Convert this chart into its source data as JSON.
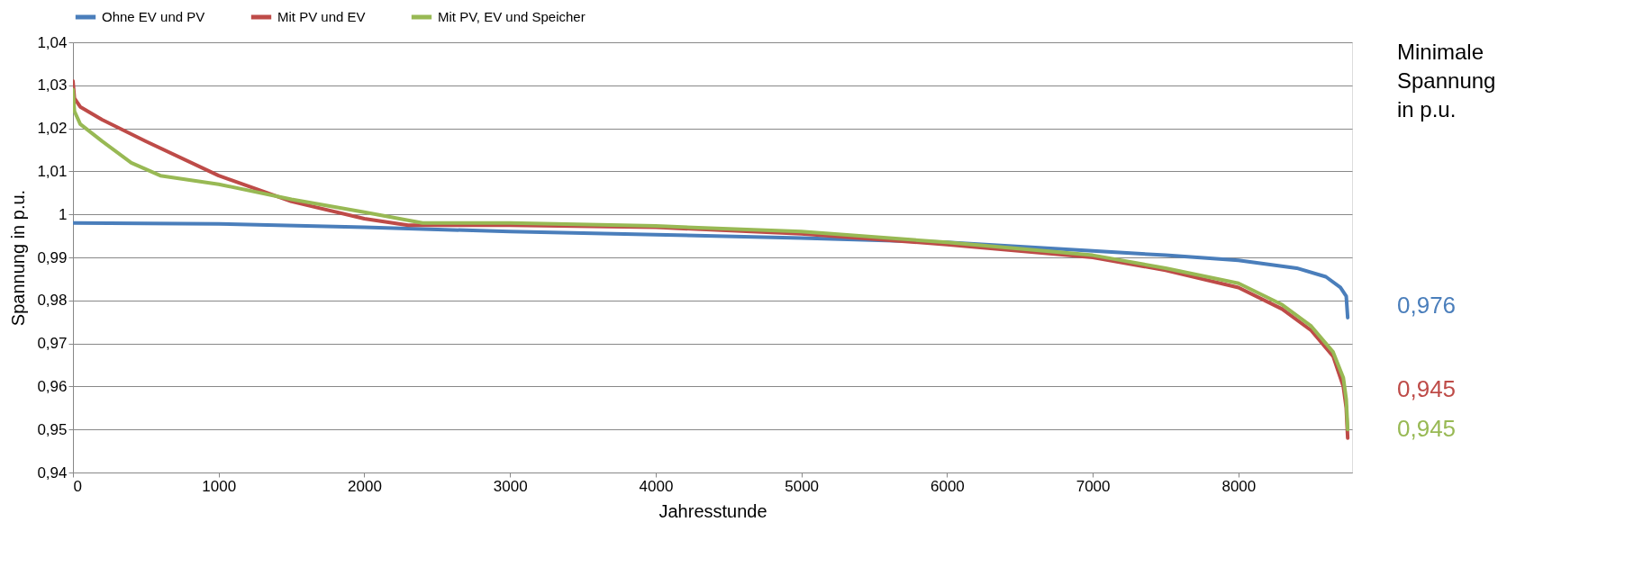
{
  "chart_data": {
    "type": "line",
    "xlabel": "Jahresstunde",
    "ylabel": "Spannung in p.u.",
    "xlim": [
      0,
      8780
    ],
    "xticks": [
      0,
      1000,
      2000,
      3000,
      4000,
      5000,
      6000,
      7000,
      8000
    ],
    "ylim": [
      0.94,
      1.04
    ],
    "yticks": [
      {
        "value": 0.94,
        "label": "0,94"
      },
      {
        "value": 0.95,
        "label": "0,95"
      },
      {
        "value": 0.96,
        "label": "0,96"
      },
      {
        "value": 0.97,
        "label": "0,97"
      },
      {
        "value": 0.98,
        "label": "0,98"
      },
      {
        "value": 0.99,
        "label": "0,99"
      },
      1,
      {
        "value": 1.01,
        "label": "1,01"
      },
      {
        "value": 1.02,
        "label": "1,02"
      },
      {
        "value": 1.03,
        "label": "1,03"
      },
      {
        "value": 1.04,
        "label": "1,04"
      }
    ],
    "grid": "y",
    "legend": "top",
    "marker": "none",
    "line_style": "solid",
    "annotations": [
      "Minimale Spannung in p.u.",
      "0,976",
      "0,945",
      "0,945"
    ],
    "series": [
      {
        "name": "Ohne EV und PV",
        "color": "#4a7ebb",
        "x": [
          0,
          1000,
          2000,
          3000,
          4000,
          5000,
          6000,
          7000,
          7500,
          8000,
          8400,
          8600,
          8700,
          8740,
          8750
        ],
        "values": [
          0.998,
          0.9978,
          0.997,
          0.996,
          0.9953,
          0.9945,
          0.9935,
          0.9915,
          0.9905,
          0.9893,
          0.9875,
          0.9855,
          0.983,
          0.981,
          0.976
        ]
      },
      {
        "name": "Mit PV und EV",
        "color": "#be4b48",
        "x": [
          0,
          10,
          50,
          200,
          500,
          1000,
          1500,
          2000,
          2300,
          3000,
          4000,
          5000,
          6000,
          7000,
          7500,
          8000,
          8300,
          8500,
          8650,
          8720,
          8740,
          8750
        ],
        "values": [
          1.031,
          1.027,
          1.025,
          1.022,
          1.017,
          1.009,
          1.003,
          0.999,
          0.9975,
          0.9975,
          0.997,
          0.9955,
          0.993,
          0.99,
          0.987,
          0.983,
          0.978,
          0.973,
          0.967,
          0.96,
          0.955,
          0.948
        ]
      },
      {
        "name": "Mit PV, EV und Speicher",
        "color": "#98b954",
        "x": [
          0,
          10,
          50,
          200,
          400,
          600,
          1000,
          1500,
          2000,
          2400,
          3000,
          4000,
          5000,
          6000,
          7000,
          7500,
          8000,
          8300,
          8500,
          8650,
          8720,
          8740,
          8750
        ],
        "values": [
          1.029,
          1.024,
          1.021,
          1.017,
          1.012,
          1.009,
          1.007,
          1.0035,
          1.0005,
          0.998,
          0.998,
          0.9973,
          0.996,
          0.9935,
          0.9905,
          0.9875,
          0.984,
          0.979,
          0.974,
          0.968,
          0.962,
          0.957,
          0.95
        ]
      }
    ]
  }
}
